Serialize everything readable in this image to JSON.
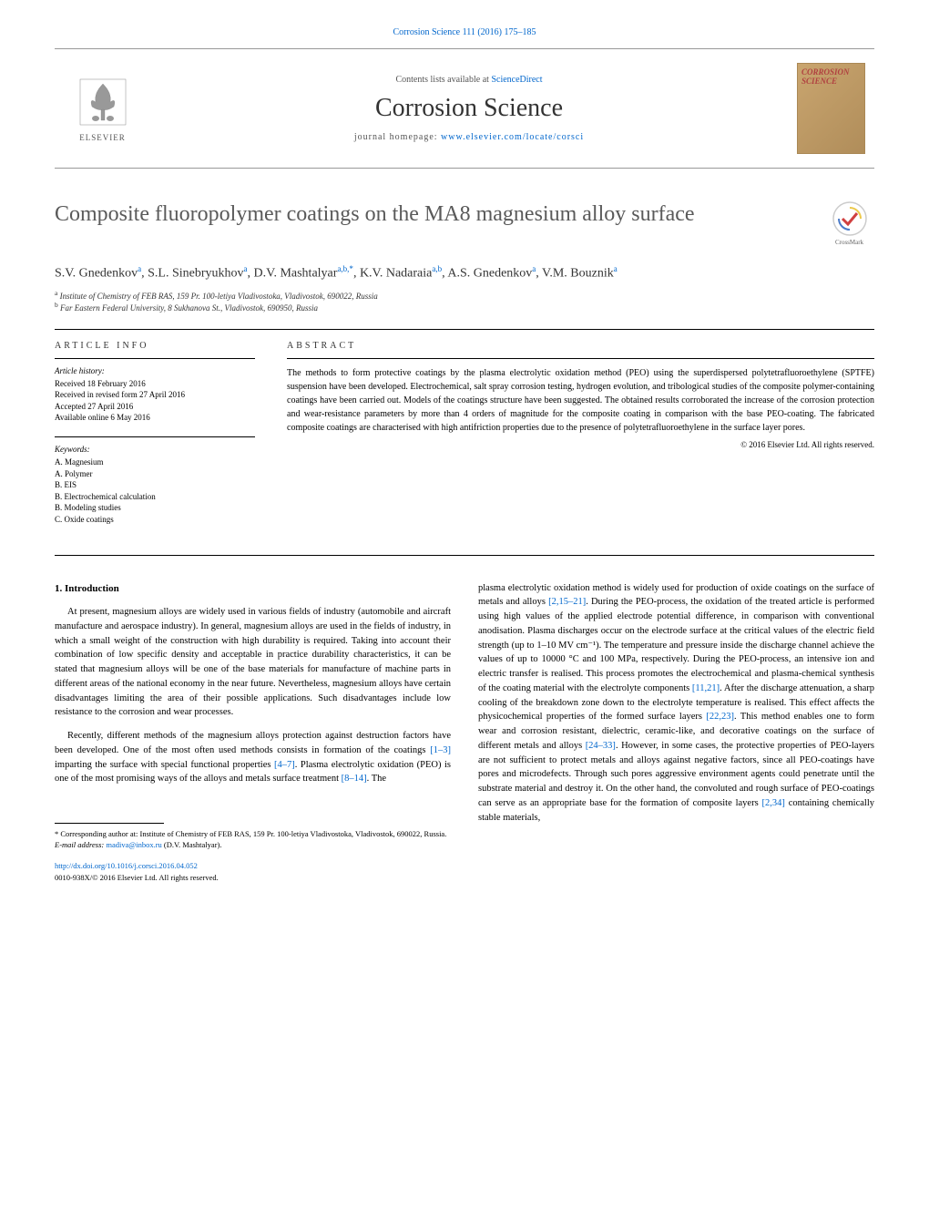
{
  "header": {
    "citation": "Corrosion Science 111 (2016) 175–185",
    "contents_prefix": "Contents lists available at ",
    "contents_link": "ScienceDirect",
    "journal_name": "Corrosion Science",
    "homepage_prefix": "journal homepage: ",
    "homepage_link": "www.elsevier.com/locate/corsci",
    "elsevier_label": "ELSEVIER",
    "cover_title": "CORROSION SCIENCE",
    "crossmark_label": "CrossMark"
  },
  "article": {
    "title": "Composite fluoropolymer coatings on the MA8 magnesium alloy surface",
    "authors_html": "S.V. Gnedenkov<sup>a</sup>, S.L. Sinebryukhov<sup>a</sup>, D.V. Mashtalyar<sup>a,b,*</sup>, K.V. Nadaraia<sup>a,b</sup>, A.S. Gnedenkov<sup>a</sup>, V.M. Bouznik<sup>a</sup>",
    "affiliations": [
      {
        "sup": "a",
        "text": "Institute of Chemistry of FEB RAS, 159 Pr. 100-letiya Vladivostoka, Vladivostok, 690022, Russia"
      },
      {
        "sup": "b",
        "text": "Far Eastern Federal University, 8 Sukhanova St., Vladivostok, 690950, Russia"
      }
    ]
  },
  "info": {
    "heading": "ARTICLE INFO",
    "history_label": "Article history:",
    "history": [
      "Received 18 February 2016",
      "Received in revised form 27 April 2016",
      "Accepted 27 April 2016",
      "Available online 6 May 2016"
    ],
    "keywords_label": "Keywords:",
    "keywords": [
      "A. Magnesium",
      "A. Polymer",
      "B. EIS",
      "B. Electrochemical calculation",
      "B. Modeling studies",
      "C. Oxide coatings"
    ]
  },
  "abstract": {
    "heading": "ABSTRACT",
    "text": "The methods to form protective coatings by the plasma electrolytic oxidation method (PEO) using the superdispersed polytetrafluoroethylene (SPTFE) suspension have been developed. Electrochemical, salt spray corrosion testing, hydrogen evolution, and tribological studies of the composite polymer-containing coatings have been carried out. Models of the coatings structure have been suggested. The obtained results corroborated the increase of the corrosion protection and wear-resistance parameters by more than 4 orders of magnitude for the composite coating in comparison with the base PEO-coating. The fabricated composite coatings are characterised with high antifriction properties due to the presence of polytetrafluoroethylene in the surface layer pores.",
    "copyright": "© 2016 Elsevier Ltd. All rights reserved."
  },
  "body": {
    "section_heading": "1. Introduction",
    "col1_p1": "At present, magnesium alloys are widely used in various fields of industry (automobile and aircraft manufacture and aerospace industry). In general, magnesium alloys are used in the fields of industry, in which a small weight of the construction with high durability is required. Taking into account their combination of low specific density and acceptable in practice durability characteristics, it can be stated that magnesium alloys will be one of the base materials for manufacture of machine parts in different areas of the national economy in the near future. Nevertheless, magnesium alloys have certain disadvantages limiting the area of their possible applications. Such disadvantages include low resistance to the corrosion and wear processes.",
    "col1_p2_a": "Recently, different methods of the magnesium alloys protection against destruction factors have been developed. One of the most often used methods consists in formation of the coatings ",
    "col1_p2_ref1": "[1–3]",
    "col1_p2_b": " imparting the surface with special functional properties ",
    "col1_p2_ref2": "[4–7]",
    "col1_p2_c": ". Plasma electrolytic oxidation (PEO) is one of the most promising ways of the alloys and metals surface treatment ",
    "col1_p2_ref3": "[8–14]",
    "col1_p2_d": ". The",
    "col2_p1_a": "plasma electrolytic oxidation method is widely used for production of oxide coatings on the surface of metals and alloys ",
    "col2_p1_ref1": "[2,15–21]",
    "col2_p1_b": ". During the PEO-process, the oxidation of the treated article is performed using high values of the applied electrode potential difference, in comparison with conventional anodisation. Plasma discharges occur on the electrode surface at the critical values of the electric field strength (up to 1–10 MV cm⁻¹). The temperature and pressure inside the discharge channel achieve the values of up to 10000 °C and 100 MPa, respectively. During the PEO-process, an intensive ion and electric transfer is realised. This process promotes the electrochemical and plasma-chemical synthesis of the coating material with the electrolyte components ",
    "col2_p1_ref2": "[11,21]",
    "col2_p1_c": ". After the discharge attenuation, a sharp cooling of the breakdown zone down to the electrolyte temperature is realised. This effect affects the physicochemical properties of the formed surface layers ",
    "col2_p1_ref3": "[22,23]",
    "col2_p1_d": ". This method enables one to form wear and corrosion resistant, dielectric, ceramic-like, and decorative coatings on the surface of different metals and alloys ",
    "col2_p1_ref4": "[24–33]",
    "col2_p1_e": ". However, in some cases, the protective properties of PEO-layers are not sufficient to protect metals and alloys against negative factors, since all PEO-coatings have pores and microdefects. Through such pores aggressive environment agents could penetrate until the substrate material and destroy it. On the other hand, the convoluted and rough surface of PEO-coatings can serve as an appropriate base for the formation of composite layers ",
    "col2_p1_ref5": "[2,34]",
    "col2_p1_f": " containing chemically stable materials,"
  },
  "footnotes": {
    "corresponding": "* Corresponding author at: Institute of Chemistry of FEB RAS, 159 Pr. 100-letiya Vladivostoka, Vladivostok, 690022, Russia.",
    "email_label": "E-mail address: ",
    "email": "madiva@inbox.ru",
    "email_name": " (D.V. Mashtalyar)."
  },
  "footer": {
    "doi": "http://dx.doi.org/10.1016/j.corsci.2016.04.052",
    "issn": "0010-938X/© 2016 Elsevier Ltd. All rights reserved."
  },
  "colors": {
    "link": "#0066cc",
    "text": "#000000",
    "title_gray": "#5a5a5a"
  }
}
